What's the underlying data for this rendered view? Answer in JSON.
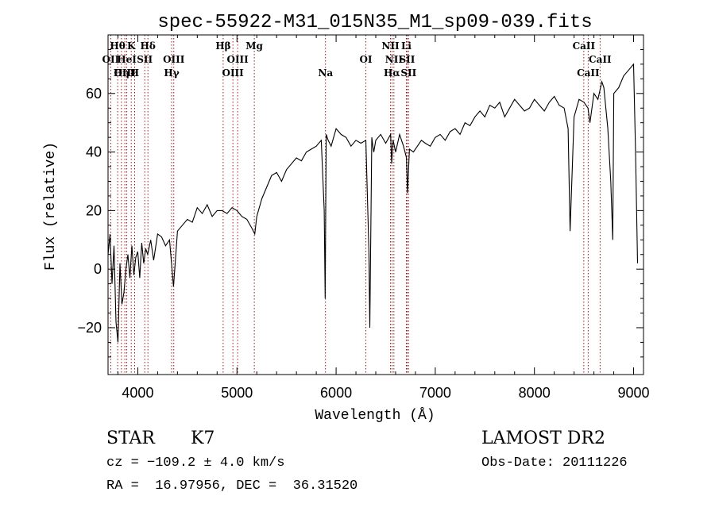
{
  "chart_data": {
    "type": "line",
    "title": "spec-55922-M31_015N35_M1_sp09-039.fits",
    "xlabel": "Wavelength (Å)",
    "ylabel": "Flux (relative)",
    "xlim": [
      3700,
      9100
    ],
    "ylim": [
      -36,
      80
    ],
    "xticks": [
      {
        "value": 4000,
        "label": "4000"
      },
      {
        "value": 5000,
        "label": "5000"
      },
      {
        "value": 6000,
        "label": "6000"
      },
      {
        "value": 7000,
        "label": "7000"
      },
      {
        "value": 8000,
        "label": "8000"
      },
      {
        "value": 9000,
        "label": "9000"
      }
    ],
    "yticks": [
      {
        "value": -20,
        "label": "−20"
      },
      {
        "value": 0,
        "label": "0"
      },
      {
        "value": 20,
        "label": "20"
      },
      {
        "value": 40,
        "label": "40"
      },
      {
        "value": 60,
        "label": "60"
      }
    ],
    "grid": false,
    "legend": "none",
    "line_color": "#000000",
    "marker_color": "#8b0000",
    "series": [
      {
        "x": [
          3700,
          3720,
          3740,
          3760,
          3780,
          3800,
          3820,
          3840,
          3860,
          3880,
          3900,
          3920,
          3940,
          3960,
          3980,
          4000,
          4020,
          4040,
          4060,
          4080,
          4100,
          4130,
          4160,
          4200,
          4240,
          4280,
          4320,
          4360,
          4400,
          4450,
          4500,
          4550,
          4600,
          4650,
          4700,
          4750,
          4800,
          4850,
          4900,
          4950,
          5000,
          5050,
          5100,
          5150,
          5180,
          5200,
          5250,
          5300,
          5350,
          5400,
          5450,
          5500,
          5550,
          5600,
          5650,
          5700,
          5750,
          5800,
          5850,
          5880,
          5890,
          5900,
          5920,
          5950,
          6000,
          6050,
          6100,
          6150,
          6200,
          6250,
          6300,
          6330,
          6340,
          6360,
          6370,
          6380,
          6400,
          6450,
          6500,
          6550,
          6560,
          6575,
          6600,
          6640,
          6680,
          6710,
          6720,
          6740,
          6780,
          6820,
          6860,
          6900,
          6950,
          7000,
          7050,
          7100,
          7150,
          7200,
          7250,
          7300,
          7350,
          7400,
          7450,
          7500,
          7550,
          7600,
          7650,
          7700,
          7750,
          7800,
          7850,
          7900,
          7950,
          8000,
          8050,
          8100,
          8150,
          8200,
          8250,
          8300,
          8340,
          8360,
          8400,
          8450,
          8500,
          8540,
          8560,
          8600,
          8640,
          8680,
          8700,
          8740,
          8770,
          8790,
          8800,
          8850,
          8900,
          8950,
          9000,
          9020,
          9040
        ],
        "y": [
          5,
          12,
          -5,
          8,
          -18,
          -25,
          2,
          -12,
          -8,
          0,
          5,
          -3,
          8,
          -2,
          4,
          6,
          -3,
          9,
          2,
          7,
          5,
          10,
          3,
          12,
          11,
          8,
          10,
          -6,
          13,
          15,
          17,
          16,
          21,
          19,
          22,
          18,
          20,
          20,
          19,
          21,
          20,
          18,
          17,
          14,
          12,
          18,
          24,
          28,
          32,
          33,
          30,
          34,
          36,
          38,
          37,
          40,
          41,
          42,
          44,
          20,
          -10,
          46,
          44,
          42,
          48,
          46,
          45,
          42,
          44,
          43,
          44,
          7,
          -20,
          45,
          42,
          40,
          44,
          46,
          43,
          46,
          36,
          44,
          40,
          46,
          42,
          38,
          26,
          41,
          40,
          42,
          44,
          43,
          42,
          45,
          46,
          44,
          47,
          48,
          46,
          50,
          49,
          52,
          54,
          52,
          56,
          55,
          57,
          52,
          55,
          58,
          56,
          54,
          55,
          58,
          56,
          54,
          57,
          59,
          56,
          55,
          48,
          13,
          52,
          58,
          57,
          55,
          50,
          60,
          58,
          64,
          62,
          48,
          30,
          10,
          60,
          62,
          66,
          68,
          70,
          40,
          2
        ]
      }
    ],
    "annotations": [
      {
        "label": "Hθ",
        "wavelength": 3797,
        "row": 0
      },
      {
        "label": "OII",
        "wavelength": 3727,
        "row": 1
      },
      {
        "label": "OIII",
        "wavelength": 3869,
        "row": 2
      },
      {
        "label": "HeI",
        "wavelength": 3889,
        "row": 1
      },
      {
        "label": "K",
        "wavelength": 3934,
        "row": 0
      },
      {
        "label": "Hη",
        "wavelength": 3835,
        "row": 2
      },
      {
        "label": "H",
        "wavelength": 3968,
        "row": 2
      },
      {
        "label": "SII",
        "wavelength": 4070,
        "row": 1
      },
      {
        "label": "Hδ",
        "wavelength": 4102,
        "row": 0
      },
      {
        "label": "OIII",
        "wavelength": 4363,
        "row": 1
      },
      {
        "label": "Hγ",
        "wavelength": 4341,
        "row": 2
      },
      {
        "label": "Hβ",
        "wavelength": 4861,
        "row": 0
      },
      {
        "label": "OIII",
        "wavelength": 5007,
        "row": 1
      },
      {
        "label": "OIII",
        "wavelength": 4959,
        "row": 2
      },
      {
        "label": "Mg",
        "wavelength": 5175,
        "row": 0
      },
      {
        "label": "Na",
        "wavelength": 5893,
        "row": 2
      },
      {
        "label": "OI",
        "wavelength": 6300,
        "row": 1
      },
      {
        "label": "NII",
        "wavelength": 6548,
        "row": 0
      },
      {
        "label": "NII",
        "wavelength": 6583,
        "row": 1
      },
      {
        "label": "Hα",
        "wavelength": 6563,
        "row": 2
      },
      {
        "label": "Li",
        "wavelength": 6708,
        "row": 0
      },
      {
        "label": "SII",
        "wavelength": 6716,
        "row": 1
      },
      {
        "label": "SII",
        "wavelength": 6731,
        "row": 2
      },
      {
        "label": "CaII",
        "wavelength": 8498,
        "row": 0
      },
      {
        "label": "CaII",
        "wavelength": 8662,
        "row": 1
      },
      {
        "label": "CaII",
        "wavelength": 8542,
        "row": 2
      }
    ]
  },
  "info": {
    "object_class": "STAR",
    "subclass": "K7",
    "survey": "LAMOST DR2",
    "cz": "cz = −109.2 ± 4.0 km/s",
    "obs_date": "Obs-Date: 20111226",
    "coords": "RA =  16.97956, DEC =  36.31520"
  }
}
